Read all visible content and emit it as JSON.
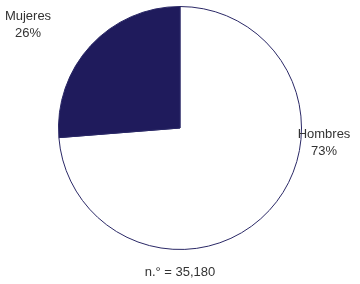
{
  "chart_data": {
    "type": "pie",
    "categories": [
      "Hombres",
      "Mujeres"
    ],
    "values": [
      73,
      26
    ],
    "colors": [
      "#ffffff",
      "#1f1b5c"
    ],
    "data_labels": true,
    "value_labels": [
      "73%",
      "26%"
    ],
    "annotation": "n.° = 35,180"
  }
}
